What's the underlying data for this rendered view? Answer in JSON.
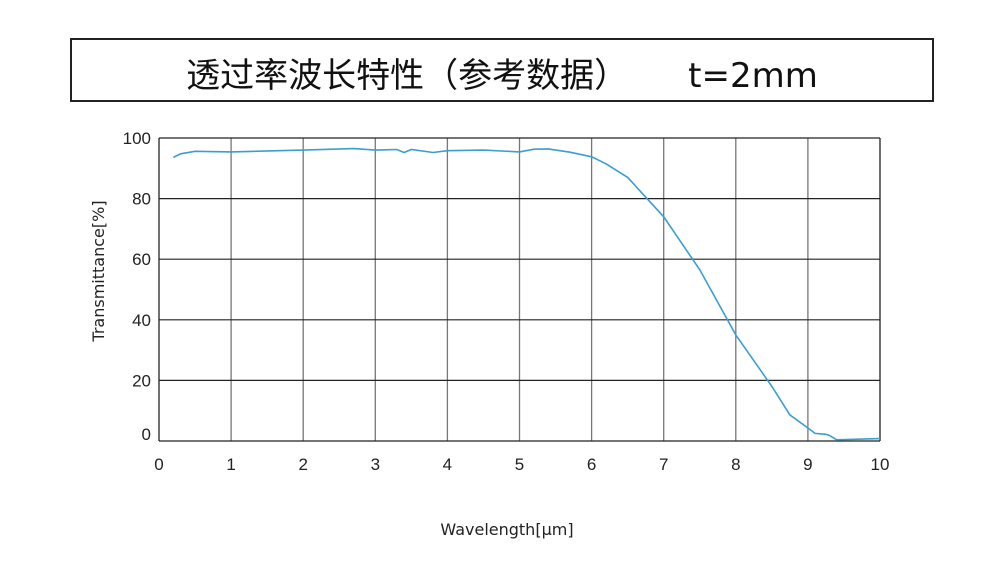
{
  "chart_data": {
    "type": "line",
    "title": "透过率波长特性（参考数据）",
    "subtitle": "t=2mm",
    "xlabel": "Wavelength[μm]",
    "ylabel": "Transmittance[%]",
    "xlim": [
      0,
      10
    ],
    "ylim": [
      0,
      100
    ],
    "xticks": [
      "0",
      "1",
      "2",
      "3",
      "4",
      "5",
      "6",
      "7",
      "8",
      "9",
      "10"
    ],
    "yticks": [
      "0",
      "20",
      "40",
      "60",
      "80",
      "100"
    ],
    "grid": true,
    "line_color": "#3a9fd0",
    "series": [
      {
        "x": [
          0.2,
          0.3,
          0.5,
          1,
          2,
          2.7,
          3,
          3.3,
          3.4,
          3.5,
          3.8,
          4,
          4.5,
          5,
          5.2,
          5.4,
          5.7,
          6,
          6.2,
          6.5,
          7,
          7.5,
          8,
          8.5,
          8.75,
          9,
          9.1,
          9.25,
          9.3,
          9.4,
          10
        ],
        "y": [
          93.6,
          94.8,
          95.6,
          95.4,
          96,
          96.5,
          96,
          96.2,
          95.2,
          96.2,
          95.2,
          95.8,
          96,
          95.4,
          96.3,
          96.4,
          95.3,
          93.8,
          91.5,
          87,
          74,
          56.5,
          35,
          18,
          8.6,
          4.3,
          2.5,
          2.2,
          1.8,
          0.4,
          0.8
        ]
      }
    ]
  }
}
